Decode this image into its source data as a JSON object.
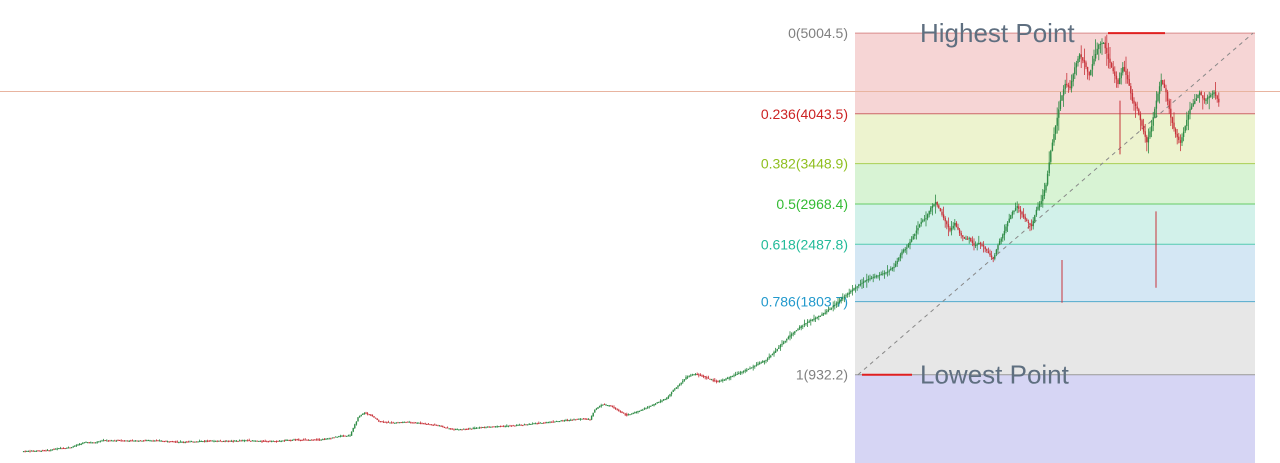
{
  "chart_data": {
    "type": "candlestick",
    "annotation": "fibonacci-retracement",
    "high_point": {
      "label": "Highest Point",
      "value": 5004.5
    },
    "low_point": {
      "label": "Lowest Point",
      "value": 932.2
    },
    "fib_levels": [
      {
        "ratio": "0",
        "value": 5004.5,
        "text": "0(5004.5)",
        "text_color": "#808080",
        "line_color": "#d98a8a",
        "fill": "#f6d5d5"
      },
      {
        "ratio": "0.236",
        "value": 4043.5,
        "text": "0.236(4043.5)",
        "text_color": "#cc2222",
        "line_color": "#cc6666",
        "fill": "#edf3cf"
      },
      {
        "ratio": "0.382",
        "value": 3448.9,
        "text": "0.382(3448.9)",
        "text_color": "#8fbf1f",
        "line_color": "#a8cf55",
        "fill": "#d8f3d4"
      },
      {
        "ratio": "0.5",
        "value": 2968.4,
        "text": "0.5(2968.4)",
        "text_color": "#33bb33",
        "line_color": "#66cc66",
        "fill": "#d2f1ea"
      },
      {
        "ratio": "0.618",
        "value": 2487.8,
        "text": "0.618(2487.8)",
        "text_color": "#22bb99",
        "line_color": "#55ccb0",
        "fill": "#d4e7f4"
      },
      {
        "ratio": "0.786",
        "value": 1803.7,
        "text": "0.786(1803.7)",
        "text_color": "#2299cc",
        "line_color": "#55aacc",
        "fill": "#e7e7e7"
      },
      {
        "ratio": "1",
        "value": 932.2,
        "text": "1(932.2)",
        "text_color": "#808080",
        "line_color": "#999999",
        "fill": "#d6d5f4"
      }
    ],
    "colors": {
      "up": "#2e8b45",
      "down": "#c8333a",
      "marker": "#e02020",
      "crosshair": "#e8b4a0"
    },
    "ylim": [
      -120,
      5400
    ],
    "close_path": [
      [
        0,
        20
      ],
      [
        8,
        25
      ],
      [
        16,
        30
      ],
      [
        20,
        45
      ],
      [
        25,
        60
      ],
      [
        30,
        65
      ],
      [
        35,
        100
      ],
      [
        40,
        130
      ],
      [
        45,
        120
      ],
      [
        50,
        150
      ],
      [
        55,
        145
      ],
      [
        60,
        150
      ],
      [
        70,
        145
      ],
      [
        80,
        150
      ],
      [
        90,
        140
      ],
      [
        100,
        130
      ],
      [
        110,
        140
      ],
      [
        120,
        145
      ],
      [
        130,
        140
      ],
      [
        140,
        150
      ],
      [
        150,
        140
      ],
      [
        160,
        140
      ],
      [
        170,
        160
      ],
      [
        180,
        155
      ],
      [
        190,
        165
      ],
      [
        198,
        200
      ],
      [
        205,
        210
      ],
      [
        210,
        420
      ],
      [
        214,
        480
      ],
      [
        218,
        450
      ],
      [
        223,
        380
      ],
      [
        230,
        360
      ],
      [
        240,
        370
      ],
      [
        250,
        355
      ],
      [
        255,
        340
      ],
      [
        260,
        330
      ],
      [
        265,
        300
      ],
      [
        270,
        280
      ],
      [
        280,
        290
      ],
      [
        290,
        310
      ],
      [
        300,
        320
      ],
      [
        310,
        330
      ],
      [
        320,
        350
      ],
      [
        330,
        370
      ],
      [
        340,
        390
      ],
      [
        350,
        410
      ],
      [
        355,
        400
      ],
      [
        358,
        520
      ],
      [
        363,
        580
      ],
      [
        368,
        560
      ],
      [
        373,
        500
      ],
      [
        378,
        450
      ],
      [
        383,
        480
      ],
      [
        388,
        520
      ],
      [
        393,
        560
      ],
      [
        398,
        610
      ],
      [
        403,
        650
      ],
      [
        407,
        750
      ],
      [
        410,
        800
      ],
      [
        415,
        900
      ],
      [
        420,
        940
      ],
      [
        425,
        920
      ],
      [
        430,
        880
      ],
      [
        435,
        850
      ],
      [
        440,
        880
      ],
      [
        445,
        930
      ],
      [
        450,
        970
      ],
      [
        455,
        1010
      ],
      [
        460,
        1060
      ],
      [
        465,
        1110
      ],
      [
        470,
        1200
      ],
      [
        475,
        1300
      ],
      [
        480,
        1400
      ],
      [
        485,
        1480
      ],
      [
        490,
        1550
      ],
      [
        495,
        1600
      ],
      [
        500,
        1650
      ],
      [
        505,
        1720
      ],
      [
        510,
        1800
      ],
      [
        515,
        1880
      ],
      [
        520,
        1960
      ],
      [
        525,
        2030
      ],
      [
        530,
        2080
      ],
      [
        535,
        2120
      ],
      [
        540,
        2150
      ],
      [
        545,
        2220
      ],
      [
        550,
        2400
      ],
      [
        553,
        2450
      ],
      [
        556,
        2550
      ],
      [
        559,
        2650
      ],
      [
        562,
        2760
      ],
      [
        565,
        2800
      ],
      [
        568,
        2920
      ],
      [
        571,
        2990
      ],
      [
        574,
        2880
      ],
      [
        577,
        2760
      ],
      [
        580,
        2650
      ],
      [
        583,
        2740
      ],
      [
        586,
        2620
      ],
      [
        589,
        2550
      ],
      [
        592,
        2560
      ],
      [
        595,
        2470
      ],
      [
        598,
        2500
      ],
      [
        601,
        2460
      ],
      [
        604,
        2380
      ],
      [
        607,
        2310
      ],
      [
        610,
        2480
      ],
      [
        613,
        2600
      ],
      [
        616,
        2750
      ],
      [
        619,
        2870
      ],
      [
        622,
        2940
      ],
      [
        625,
        2840
      ],
      [
        628,
        2760
      ],
      [
        631,
        2700
      ],
      [
        634,
        2900
      ],
      [
        637,
        3000
      ],
      [
        640,
        3200
      ],
      [
        643,
        3600
      ],
      [
        646,
        3900
      ],
      [
        649,
        4200
      ],
      [
        652,
        4400
      ],
      [
        655,
        4350
      ],
      [
        658,
        4600
      ],
      [
        661,
        4750
      ],
      [
        664,
        4650
      ],
      [
        667,
        4500
      ],
      [
        670,
        4700
      ],
      [
        673,
        4870
      ],
      [
        676,
        4890
      ],
      [
        679,
        4700
      ],
      [
        682,
        4550
      ],
      [
        685,
        4400
      ],
      [
        688,
        4600
      ],
      [
        691,
        4460
      ],
      [
        694,
        4200
      ],
      [
        697,
        4100
      ],
      [
        700,
        3900
      ],
      [
        703,
        3700
      ],
      [
        706,
        3900
      ],
      [
        709,
        4200
      ],
      [
        712,
        4450
      ],
      [
        715,
        4300
      ],
      [
        718,
        4000
      ],
      [
        721,
        3800
      ],
      [
        724,
        3700
      ],
      [
        727,
        3900
      ],
      [
        730,
        4100
      ],
      [
        733,
        4200
      ],
      [
        736,
        4300
      ],
      [
        739,
        4200
      ],
      [
        742,
        4250
      ],
      [
        745,
        4300
      ],
      [
        748,
        4180
      ]
    ]
  }
}
